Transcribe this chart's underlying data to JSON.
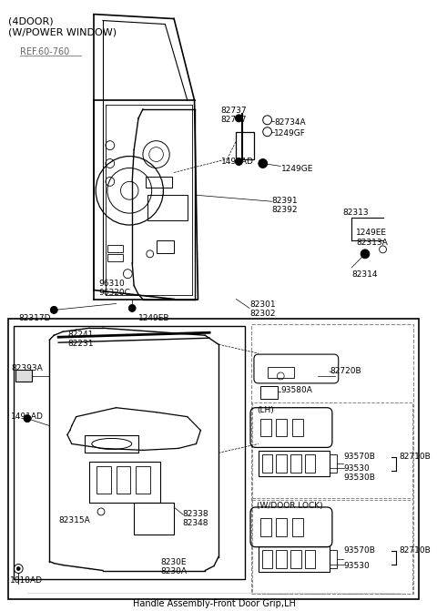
{
  "bg_color": "#ffffff",
  "header1": "(4DOOR)",
  "header2": "(W/POWER WINDOW)",
  "ref_label": "REF.60-760",
  "page_title": "Handle Assembly-Front Door Grip,LH",
  "fig_w": 4.8,
  "fig_h": 6.71,
  "dpi": 100
}
